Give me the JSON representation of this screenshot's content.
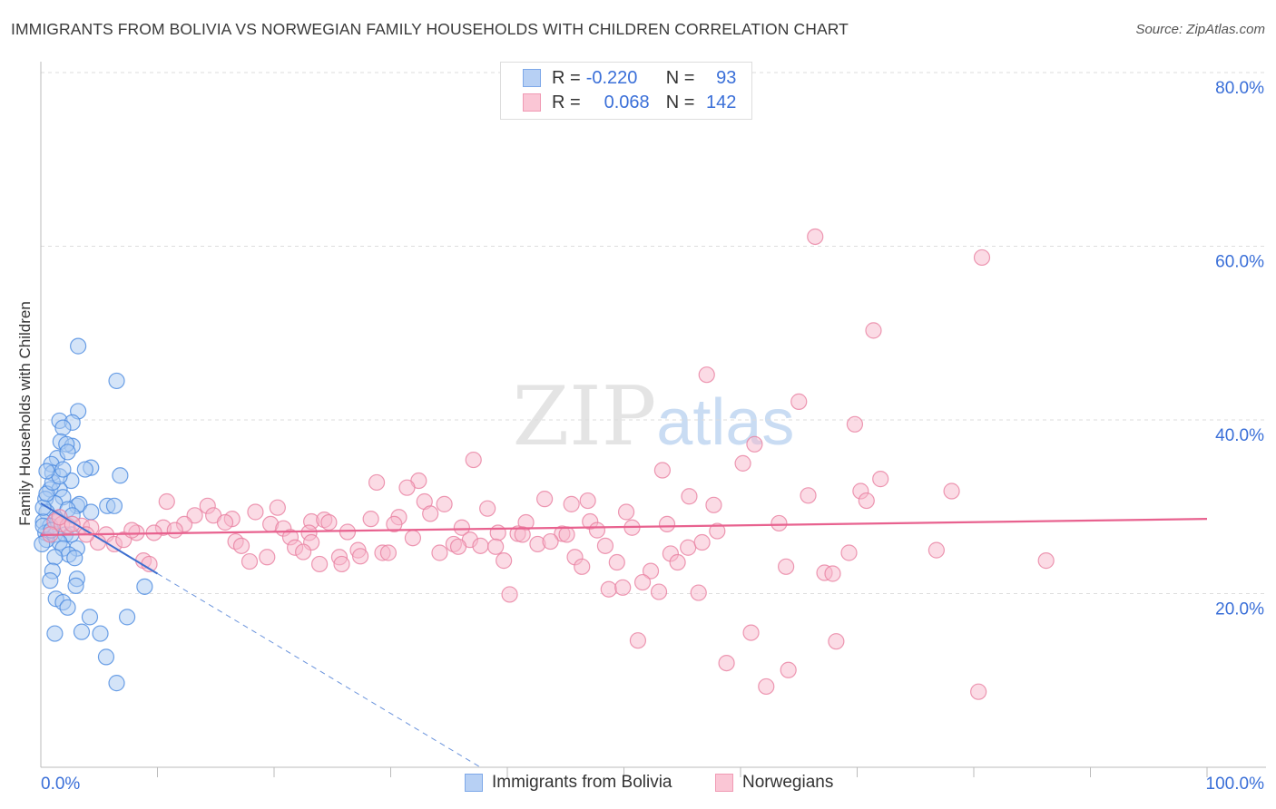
{
  "title": "IMMIGRANTS FROM BOLIVIA VS NORWEGIAN FAMILY HOUSEHOLDS WITH CHILDREN CORRELATION CHART",
  "source": "Source: ZipAtlas.com",
  "watermark": "ZIPatlas",
  "legend": {
    "r_label": "R =",
    "n_label": "N =",
    "rows": [
      {
        "r": "-0.220",
        "n": "93"
      },
      {
        "r": "0.068",
        "n": "142"
      }
    ]
  },
  "chart_data": {
    "type": "scatter",
    "title": "IMMIGRANTS FROM BOLIVIA VS NORWEGIAN FAMILY HOUSEHOLDS WITH CHILDREN CORRELATION CHART",
    "xlabel": "",
    "ylabel": "Family Households with Children",
    "xlim": [
      0,
      100
    ],
    "ylim": [
      0,
      80
    ],
    "x_tick_labels": [
      "0.0%",
      "100.0%"
    ],
    "y_tick_labels": [
      "20.0%",
      "40.0%",
      "60.0%",
      "80.0%"
    ],
    "y_ticks": [
      20,
      40,
      60,
      80
    ],
    "grid": true,
    "legend_placement": "top-center",
    "series": [
      {
        "name": "Immigrants from Bolivia",
        "color": "#4a8ae0",
        "fill": "#a9c9f2",
        "R": -0.22,
        "N": 93,
        "trend": {
          "x": [
            0,
            10,
            37.7
          ],
          "y": [
            30.4,
            22.3,
            0
          ],
          "solid_until": 10
        },
        "points": [
          [
            3.2,
            48.5
          ],
          [
            6.5,
            44.5
          ],
          [
            3.2,
            41.0
          ],
          [
            1.6,
            39.9
          ],
          [
            2.7,
            39.7
          ],
          [
            1.9,
            39.1
          ],
          [
            1.7,
            37.5
          ],
          [
            2.7,
            37.0
          ],
          [
            2.2,
            37.2
          ],
          [
            1.4,
            35.6
          ],
          [
            2.3,
            36.3
          ],
          [
            0.9,
            34.9
          ],
          [
            4.3,
            34.5
          ],
          [
            3.8,
            34.3
          ],
          [
            6.8,
            33.6
          ],
          [
            1.0,
            33.9
          ],
          [
            2.6,
            33.0
          ],
          [
            0.8,
            32.0
          ],
          [
            1.6,
            32.0
          ],
          [
            1.9,
            31.1
          ],
          [
            0.4,
            30.9
          ],
          [
            1.2,
            30.4
          ],
          [
            3.1,
            30.1
          ],
          [
            3.3,
            30.3
          ],
          [
            5.7,
            30.1
          ],
          [
            6.3,
            30.1
          ],
          [
            2.3,
            29.7
          ],
          [
            4.3,
            29.4
          ],
          [
            0.5,
            29.4
          ],
          [
            2.7,
            29.0
          ],
          [
            1.3,
            28.6
          ],
          [
            0.2,
            28.3
          ],
          [
            0.8,
            27.8
          ],
          [
            0.4,
            27.0
          ],
          [
            1.2,
            26.8
          ],
          [
            2.1,
            26.8
          ],
          [
            2.6,
            26.8
          ],
          [
            1.6,
            25.9
          ],
          [
            1.9,
            25.2
          ],
          [
            3.1,
            25.2
          ],
          [
            2.4,
            24.5
          ],
          [
            2.9,
            24.1
          ],
          [
            1.2,
            24.2
          ],
          [
            1.0,
            22.6
          ],
          [
            3.1,
            21.7
          ],
          [
            0.8,
            21.5
          ],
          [
            3.0,
            20.9
          ],
          [
            8.9,
            20.8
          ],
          [
            1.3,
            19.4
          ],
          [
            1.9,
            19.0
          ],
          [
            2.3,
            18.4
          ],
          [
            4.2,
            17.3
          ],
          [
            7.4,
            17.3
          ],
          [
            1.2,
            15.4
          ],
          [
            3.5,
            15.6
          ],
          [
            5.1,
            15.4
          ],
          [
            5.6,
            12.7
          ],
          [
            6.5,
            9.7
          ],
          [
            0.2,
            27.8
          ],
          [
            0.5,
            26.2
          ],
          [
            0.1,
            25.7
          ],
          [
            0.9,
            27.3
          ],
          [
            0.2,
            29.9
          ],
          [
            0.5,
            31.5
          ],
          [
            1.0,
            32.8
          ],
          [
            1.6,
            33.5
          ],
          [
            1.9,
            34.3
          ],
          [
            0.5,
            34.1
          ]
        ]
      },
      {
        "name": "Norwegians",
        "color": "#e87fa0",
        "fill": "#f7b8cb",
        "R": 0.068,
        "N": 142,
        "trend": {
          "x": [
            0,
            100
          ],
          "y": [
            26.75,
            28.6
          ]
        },
        "points": [
          [
            66.4,
            61.1
          ],
          [
            80.7,
            58.7
          ],
          [
            71.4,
            50.3
          ],
          [
            57.1,
            45.2
          ],
          [
            65.0,
            42.1
          ],
          [
            69.8,
            39.5
          ],
          [
            61.2,
            37.2
          ],
          [
            37.1,
            35.4
          ],
          [
            60.2,
            35.0
          ],
          [
            53.3,
            34.2
          ],
          [
            72.0,
            33.2
          ],
          [
            28.8,
            32.8
          ],
          [
            32.4,
            33.0
          ],
          [
            31.4,
            32.2
          ],
          [
            78.1,
            31.8
          ],
          [
            70.3,
            31.8
          ],
          [
            65.8,
            31.3
          ],
          [
            55.6,
            31.2
          ],
          [
            43.2,
            30.9
          ],
          [
            70.8,
            30.7
          ],
          [
            46.9,
            30.7
          ],
          [
            10.8,
            30.6
          ],
          [
            32.9,
            30.6
          ],
          [
            34.6,
            30.3
          ],
          [
            45.5,
            30.3
          ],
          [
            57.7,
            30.2
          ],
          [
            20.3,
            29.9
          ],
          [
            14.3,
            30.1
          ],
          [
            38.3,
            29.8
          ],
          [
            18.4,
            29.4
          ],
          [
            50.2,
            29.4
          ],
          [
            13.2,
            29.0
          ],
          [
            14.8,
            29.0
          ],
          [
            16.4,
            28.6
          ],
          [
            33.4,
            29.2
          ],
          [
            28.3,
            28.6
          ],
          [
            30.7,
            28.8
          ],
          [
            41.6,
            28.2
          ],
          [
            47.1,
            28.3
          ],
          [
            12.3,
            28.0
          ],
          [
            15.8,
            28.2
          ],
          [
            23.2,
            28.3
          ],
          [
            24.3,
            28.5
          ],
          [
            24.7,
            28.2
          ],
          [
            30.3,
            28.0
          ],
          [
            53.7,
            28.0
          ],
          [
            63.3,
            28.1
          ],
          [
            19.7,
            28.0
          ],
          [
            10.5,
            27.6
          ],
          [
            11.5,
            27.3
          ],
          [
            20.8,
            27.5
          ],
          [
            36.1,
            27.6
          ],
          [
            50.7,
            27.6
          ],
          [
            58.0,
            27.2
          ],
          [
            47.7,
            27.3
          ],
          [
            26.3,
            27.1
          ],
          [
            23.0,
            27.0
          ],
          [
            5.6,
            26.8
          ],
          [
            8.2,
            27.0
          ],
          [
            9.7,
            27.0
          ],
          [
            39.2,
            27.0
          ],
          [
            40.9,
            26.9
          ],
          [
            41.3,
            26.8
          ],
          [
            44.7,
            26.9
          ],
          [
            45.1,
            26.8
          ],
          [
            31.9,
            26.4
          ],
          [
            36.8,
            26.2
          ],
          [
            16.7,
            26.0
          ],
          [
            21.4,
            26.5
          ],
          [
            23.2,
            25.9
          ],
          [
            4.9,
            25.9
          ],
          [
            6.3,
            25.7
          ],
          [
            17.2,
            25.5
          ],
          [
            35.4,
            25.7
          ],
          [
            35.8,
            25.4
          ],
          [
            37.7,
            25.5
          ],
          [
            39.0,
            25.4
          ],
          [
            42.6,
            25.7
          ],
          [
            43.7,
            26.0
          ],
          [
            48.4,
            25.5
          ],
          [
            21.8,
            25.3
          ],
          [
            22.5,
            24.8
          ],
          [
            27.2,
            25.0
          ],
          [
            27.4,
            24.3
          ],
          [
            29.3,
            24.7
          ],
          [
            29.8,
            24.7
          ],
          [
            34.2,
            24.7
          ],
          [
            55.5,
            25.3
          ],
          [
            56.7,
            25.9
          ],
          [
            54.0,
            24.6
          ],
          [
            69.3,
            24.7
          ],
          [
            76.8,
            25.0
          ],
          [
            45.8,
            24.2
          ],
          [
            17.9,
            23.7
          ],
          [
            19.4,
            24.2
          ],
          [
            25.6,
            24.2
          ],
          [
            39.7,
            23.8
          ],
          [
            8.8,
            23.8
          ],
          [
            9.3,
            23.4
          ],
          [
            23.9,
            23.4
          ],
          [
            25.8,
            23.4
          ],
          [
            49.4,
            23.6
          ],
          [
            54.6,
            23.6
          ],
          [
            86.2,
            23.8
          ],
          [
            46.4,
            23.1
          ],
          [
            63.9,
            23.1
          ],
          [
            52.3,
            22.6
          ],
          [
            67.2,
            22.4
          ],
          [
            67.9,
            22.3
          ],
          [
            51.6,
            21.3
          ],
          [
            48.7,
            20.5
          ],
          [
            49.9,
            20.7
          ],
          [
            53.0,
            20.2
          ],
          [
            56.4,
            20.1
          ],
          [
            40.2,
            19.9
          ],
          [
            51.2,
            14.6
          ],
          [
            60.9,
            15.5
          ],
          [
            68.2,
            14.5
          ],
          [
            58.8,
            12.0
          ],
          [
            64.1,
            11.2
          ],
          [
            62.2,
            9.3
          ],
          [
            80.4,
            8.7
          ],
          [
            1.2,
            28.3
          ],
          [
            1.8,
            28.0
          ],
          [
            2.3,
            27.8
          ],
          [
            3.5,
            27.8
          ],
          [
            4.3,
            27.6
          ],
          [
            0.8,
            26.8
          ],
          [
            1.6,
            28.8
          ],
          [
            2.7,
            28.0
          ],
          [
            3.9,
            26.8
          ],
          [
            7.1,
            26.2
          ],
          [
            7.8,
            27.3
          ]
        ]
      }
    ]
  }
}
